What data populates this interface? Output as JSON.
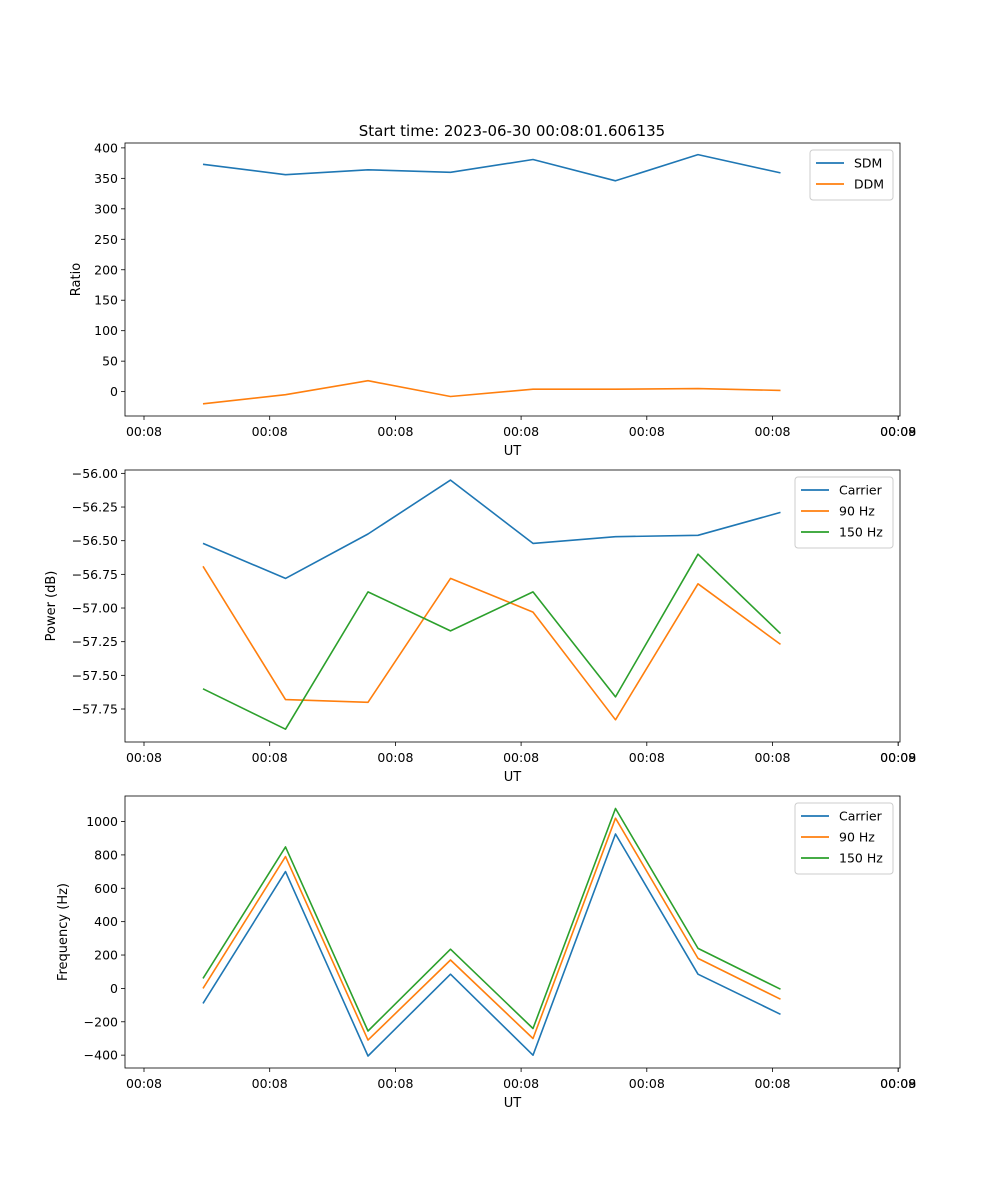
{
  "figure": {
    "title": "Start time: 2023-06-30 00:08:01.606135"
  },
  "chart_data": [
    {
      "type": "line",
      "xlabel": "UT",
      "ylabel": "Ratio",
      "xticks": [
        "00:08",
        "00:08",
        "00:08",
        "00:08",
        "00:08",
        "00:08",
        "00:08",
        "00:09"
      ],
      "yticks": [
        0,
        50,
        100,
        150,
        200,
        250,
        300,
        350,
        400
      ],
      "ylim": [
        -40,
        408
      ],
      "legend": "upper-right",
      "series": [
        {
          "name": "SDM",
          "color": "#1f77b4",
          "values": [
            373,
            356,
            364,
            360,
            381,
            346,
            389,
            359
          ]
        },
        {
          "name": "DDM",
          "color": "#ff7f0e",
          "values": [
            -20,
            -5,
            18,
            -8,
            4,
            4,
            5,
            2
          ]
        }
      ]
    },
    {
      "type": "line",
      "xlabel": "UT",
      "ylabel": "Power (dB)",
      "xticks": [
        "00:08",
        "00:08",
        "00:08",
        "00:08",
        "00:08",
        "00:08",
        "00:08",
        "00:09"
      ],
      "yticks": [
        -56.0,
        -56.25,
        -56.5,
        -56.75,
        -57.0,
        -57.25,
        -57.5,
        -57.75
      ],
      "ylim": [
        -57.995,
        -55.975
      ],
      "legend": "upper-right",
      "series": [
        {
          "name": "Carrier",
          "color": "#1f77b4",
          "values": [
            -56.52,
            -56.78,
            -56.45,
            -56.05,
            -56.52,
            -56.47,
            -56.46,
            -56.29
          ]
        },
        {
          "name": "90 Hz",
          "color": "#ff7f0e",
          "values": [
            -56.69,
            -57.68,
            -57.7,
            -56.78,
            -57.03,
            -57.83,
            -56.82,
            -57.27
          ]
        },
        {
          "name": "150 Hz",
          "color": "#2ca02c",
          "values": [
            -57.6,
            -57.9,
            -56.88,
            -57.17,
            -56.88,
            -57.66,
            -56.6,
            -57.19
          ]
        }
      ]
    },
    {
      "type": "line",
      "xlabel": "UT",
      "ylabel": "Frequency (Hz)",
      "xticks": [
        "00:08",
        "00:08",
        "00:08",
        "00:08",
        "00:08",
        "00:08",
        "00:08",
        "00:09"
      ],
      "yticks": [
        -400,
        -200,
        0,
        200,
        400,
        600,
        800,
        1000
      ],
      "ylim": [
        -477,
        1153
      ],
      "legend": "upper-right",
      "series": [
        {
          "name": "Carrier",
          "color": "#1f77b4",
          "values": [
            -90,
            700,
            -405,
            85,
            -400,
            925,
            85,
            -155
          ]
        },
        {
          "name": "90 Hz",
          "color": "#ff7f0e",
          "values": [
            0,
            790,
            -310,
            170,
            -300,
            1020,
            180,
            -65
          ]
        },
        {
          "name": "150 Hz",
          "color": "#2ca02c",
          "values": [
            60,
            848,
            -255,
            235,
            -240,
            1078,
            240,
            -5
          ]
        }
      ]
    }
  ]
}
